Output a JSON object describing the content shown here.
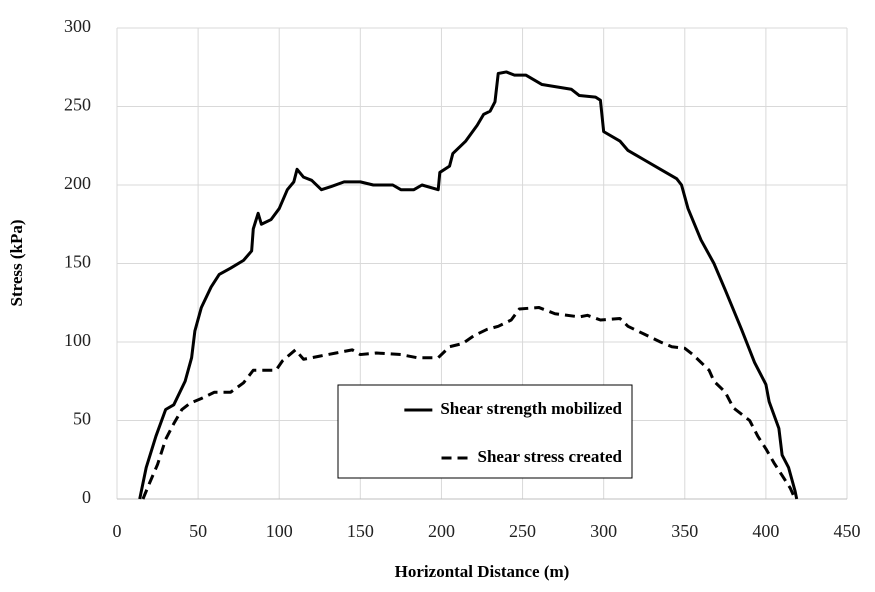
{
  "chart_data": {
    "type": "line",
    "xlabel": "Horizontal Distance (m)",
    "ylabel": "Stress (kPa)",
    "xlim": [
      0,
      450
    ],
    "xticks": [
      0,
      50,
      100,
      150,
      200,
      250,
      300,
      350,
      400,
      450
    ],
    "ylim": [
      0,
      300
    ],
    "yticks": [
      0,
      50,
      100,
      150,
      200,
      250,
      300
    ],
    "grid": true,
    "legend": "center",
    "series": [
      {
        "name": "Shear strength mobilized",
        "color": "#000000",
        "line_style": "solid",
        "x": [
          14,
          18,
          24,
          30,
          35,
          42,
          46,
          48,
          52,
          58,
          63,
          70,
          78,
          83,
          84,
          87,
          89,
          95,
          100,
          105,
          109,
          111,
          115,
          120,
          126,
          132,
          140,
          150,
          158,
          170,
          175,
          183,
          188,
          198,
          199,
          205,
          207,
          215,
          222,
          226,
          230,
          233,
          235,
          240,
          245,
          252,
          262,
          280,
          285,
          295,
          298,
          300,
          310,
          315,
          325,
          335,
          345,
          348,
          352,
          360,
          368,
          375,
          385,
          393,
          400,
          402,
          408,
          410,
          414,
          418,
          419
        ],
        "values": [
          0,
          20,
          40,
          57,
          60,
          75,
          90,
          107,
          122,
          135,
          143,
          147,
          152,
          158,
          172,
          182,
          175,
          178,
          185,
          197,
          202,
          210,
          205,
          203,
          197,
          199,
          202,
          202,
          200,
          200,
          197,
          197,
          200,
          197,
          208,
          212,
          220,
          228,
          238,
          245,
          247,
          253,
          271,
          272,
          270,
          270,
          264,
          261,
          257,
          256,
          254,
          234,
          228,
          222,
          216,
          210,
          204,
          200,
          185,
          165,
          150,
          133,
          108,
          87,
          73,
          62,
          45,
          28,
          20,
          5,
          0
        ]
      },
      {
        "name": "Shear stress created",
        "color": "#000000",
        "line_style": "dashed",
        "x": [
          16,
          20,
          25,
          30,
          35,
          40,
          45,
          52,
          60,
          70,
          78,
          84,
          92,
          98,
          102,
          110,
          115,
          125,
          135,
          145,
          150,
          160,
          175,
          185,
          198,
          205,
          213,
          220,
          228,
          235,
          243,
          248,
          260,
          270,
          285,
          290,
          298,
          310,
          315,
          325,
          335,
          342,
          350,
          355,
          365,
          368,
          375,
          380,
          390,
          395,
          400,
          405,
          410,
          415,
          418
        ],
        "values": [
          0,
          10,
          22,
          38,
          48,
          57,
          61,
          64,
          68,
          68,
          74,
          82,
          82,
          82,
          88,
          95,
          89,
          91,
          93,
          95,
          92,
          93,
          92,
          90,
          90,
          97,
          99,
          104,
          108,
          110,
          114,
          121,
          122,
          118,
          116,
          117,
          114,
          115,
          110,
          105,
          100,
          97,
          96,
          92,
          82,
          75,
          68,
          58,
          50,
          40,
          32,
          23,
          15,
          7,
          0
        ]
      }
    ]
  }
}
